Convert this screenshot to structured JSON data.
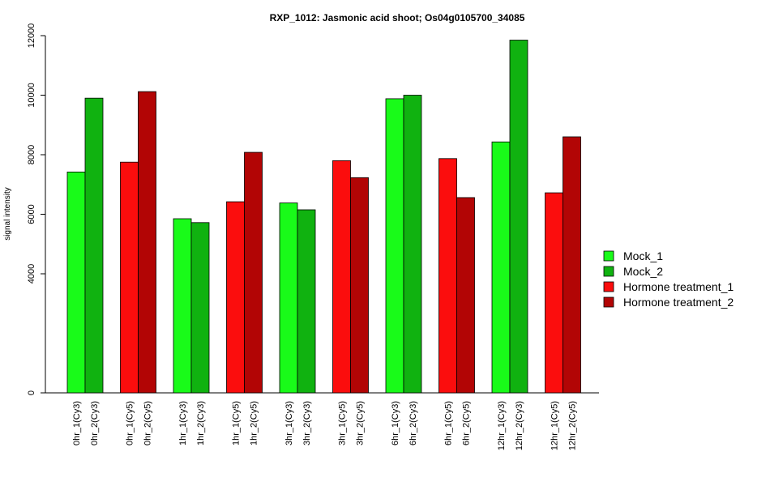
{
  "chart_data": {
    "type": "bar",
    "title": "RXP_1012: Jasmonic acid shoot; Os04g0105700_34085",
    "xlabel": "",
    "ylabel": "signal intensity",
    "ylim": [
      0,
      12000
    ],
    "y_ticks": [
      0,
      4000,
      6000,
      8000,
      10000,
      12000
    ],
    "grid": false,
    "legend_position": "right",
    "legend": [
      {
        "name": "Mock_1",
        "color": "#19fb19"
      },
      {
        "name": "Mock_2",
        "color": "#10b210"
      },
      {
        "name": "Hormone treatment_1",
        "color": "#fb0d0d"
      },
      {
        "name": "Hormone treatment_2",
        "color": "#b20505"
      }
    ],
    "groups": [
      {
        "bars": [
          {
            "label": "0hr_1(Cy3)",
            "value": 7420,
            "series": 0
          },
          {
            "label": "0hr_2(Cy3)",
            "value": 9900,
            "series": 1
          }
        ]
      },
      {
        "bars": [
          {
            "label": "0hr_1(Cy5)",
            "value": 7750,
            "series": 2
          },
          {
            "label": "0hr_2(Cy5)",
            "value": 10120,
            "series": 3
          }
        ]
      },
      {
        "bars": [
          {
            "label": "1hr_1(Cy3)",
            "value": 5850,
            "series": 0
          },
          {
            "label": "1hr_2(Cy3)",
            "value": 5720,
            "series": 1
          }
        ]
      },
      {
        "bars": [
          {
            "label": "1hr_1(Cy5)",
            "value": 6420,
            "series": 2
          },
          {
            "label": "1hr_2(Cy5)",
            "value": 8080,
            "series": 3
          }
        ]
      },
      {
        "bars": [
          {
            "label": "3hr_1(Cy3)",
            "value": 6380,
            "series": 0
          },
          {
            "label": "3hr_2(Cy3)",
            "value": 6150,
            "series": 1
          }
        ]
      },
      {
        "bars": [
          {
            "label": "3hr_1(Cy5)",
            "value": 7800,
            "series": 2
          },
          {
            "label": "3hr_2(Cy5)",
            "value": 7230,
            "series": 3
          }
        ]
      },
      {
        "bars": [
          {
            "label": "6hr_1(Cy3)",
            "value": 9880,
            "series": 0
          },
          {
            "label": "6hr_2(Cy3)",
            "value": 10000,
            "series": 1
          }
        ]
      },
      {
        "bars": [
          {
            "label": "6hr_1(Cy5)",
            "value": 7870,
            "series": 2
          },
          {
            "label": "6hr_2(Cy5)",
            "value": 6560,
            "series": 3
          }
        ]
      },
      {
        "bars": [
          {
            "label": "12hr_1(Cy3)",
            "value": 8430,
            "series": 0
          },
          {
            "label": "12hr_2(Cy3)",
            "value": 11850,
            "series": 1
          }
        ]
      },
      {
        "bars": [
          {
            "label": "12hr_1(Cy5)",
            "value": 6720,
            "series": 2
          },
          {
            "label": "12hr_2(Cy5)",
            "value": 8600,
            "series": 3
          }
        ]
      }
    ]
  }
}
